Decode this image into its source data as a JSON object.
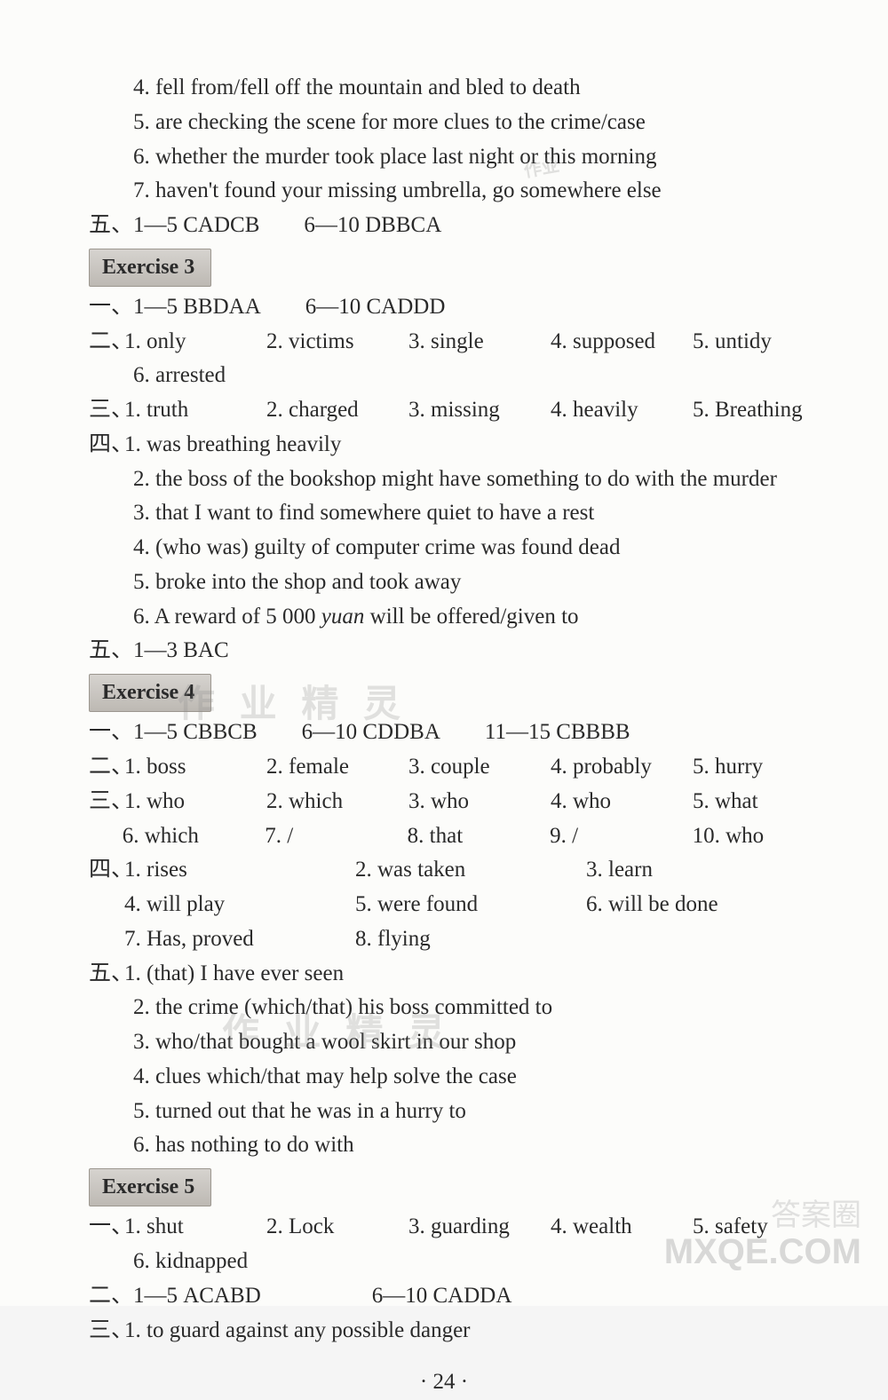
{
  "top": {
    "l4": "4. fell from/fell off the mountain and bled to death",
    "l5": "5. are checking the scene for more clues to the crime/case",
    "l6": "6. whether the murder took place last night or this morning",
    "l7": "7. haven't found your missing umbrella, go somewhere else",
    "wu": "五、1—5 CADCB  6—10 DBBCA"
  },
  "ex3": {
    "title": "Exercise 3",
    "yi": "一、1—5 BBDAA  6—10 CADDD",
    "er_label": "二、",
    "er": [
      "1. only",
      "2. victims",
      "3. single",
      "4. supposed",
      "5. untidy"
    ],
    "er6": "6. arrested",
    "san_label": "三、",
    "san": [
      "1. truth",
      "2. charged",
      "3. missing",
      "4. heavily",
      "5. Breathing"
    ],
    "si_label": "四、",
    "si1": "1. was breathing heavily",
    "si2": "2. the boss of the bookshop might have something to do with the murder",
    "si3": "3. that I want to find somewhere quiet to have a rest",
    "si4": "4. (who was) guilty of computer crime was found dead",
    "si5": "5. broke into the shop and took away",
    "si6a": "6. A reward of 5 000 ",
    "si6b": "yuan",
    "si6c": " will be offered/given to",
    "wu": "五、1—3 BAC"
  },
  "ex4": {
    "title": "Exercise 4",
    "yi": "一、1—5 CBBCB  6—10 CDDBA  11—15 CBBBB",
    "er_label": "二、",
    "er": [
      "1. boss",
      "2. female",
      "3. couple",
      "4. probably",
      "5. hurry"
    ],
    "san_label": "三、",
    "san_r1": [
      "1. who",
      "2. which",
      "3. who",
      "4. who",
      "5. what"
    ],
    "san_r2": [
      "6. which",
      "7. /",
      "8. that",
      "9. /",
      "10. who"
    ],
    "si_label": "四、",
    "si_r1": [
      "1. rises",
      "2. was taken",
      "3. learn"
    ],
    "si_r2": [
      "4. will play",
      "5. were found",
      "6. will be done"
    ],
    "si_r3": [
      "7. Has, proved",
      "8. flying",
      ""
    ],
    "wu_label": "五、",
    "wu1": "1. (that) I have ever seen",
    "wu2": "2. the crime (which/that) his boss committed to",
    "wu3": "3. who/that bought a wool skirt in our shop",
    "wu4": "4. clues which/that may help solve the case",
    "wu5": "5. turned out that he was in a hurry to",
    "wu6": "6. has nothing to do with"
  },
  "ex5": {
    "title": "Exercise 5",
    "yi_label": "一、",
    "yi": [
      "1. shut",
      "2. Lock",
      "3. guarding",
      "4. wealth",
      "5. safety"
    ],
    "yi6": "6. kidnapped",
    "er": "二、1—5 ACABD     6—10 CADDA",
    "san_label": "三、",
    "san1": "1. to guard against any possible danger"
  },
  "pagenum": "· 24 ·",
  "watermarks": {
    "w1": "作业",
    "w2": "作 业 精 灵",
    "w3": "作 业 精 灵",
    "w4": "MXQE.COM",
    "w5": "答案圈"
  }
}
